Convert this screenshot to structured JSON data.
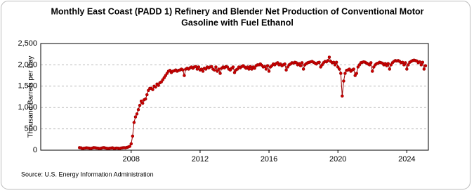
{
  "chart_data": {
    "type": "line",
    "title": [
      "Monthly East Coast (PADD 1) Refinery and Blender Net Production of Conventional Motor",
      "Gasoline with Fuel Ethanol"
    ],
    "y_label": "Thousand Barrels per Day",
    "source": "Source: U.S. Energy Information Administration",
    "x": [
      "2005-01",
      "2005-02",
      "2005-03",
      "2005-04",
      "2005-05",
      "2005-06",
      "2005-07",
      "2005-08",
      "2005-09",
      "2005-10",
      "2005-11",
      "2005-12",
      "2006-01",
      "2006-02",
      "2006-03",
      "2006-04",
      "2006-05",
      "2006-06",
      "2006-07",
      "2006-08",
      "2006-09",
      "2006-10",
      "2006-11",
      "2006-12",
      "2007-01",
      "2007-02",
      "2007-03",
      "2007-04",
      "2007-05",
      "2007-06",
      "2007-07",
      "2007-08",
      "2007-09",
      "2007-10",
      "2007-11",
      "2007-12",
      "2008-01",
      "2008-02",
      "2008-03",
      "2008-04",
      "2008-05",
      "2008-06",
      "2008-07",
      "2008-08",
      "2008-09",
      "2008-10",
      "2008-11",
      "2008-12",
      "2009-01",
      "2009-02",
      "2009-03",
      "2009-04",
      "2009-05",
      "2009-06",
      "2009-07",
      "2009-08",
      "2009-09",
      "2009-10",
      "2009-11",
      "2009-12",
      "2010-01",
      "2010-02",
      "2010-03",
      "2010-04",
      "2010-05",
      "2010-06",
      "2010-07",
      "2010-08",
      "2010-09",
      "2010-10",
      "2010-11",
      "2010-12",
      "2011-01",
      "2011-02",
      "2011-03",
      "2011-04",
      "2011-05",
      "2011-06",
      "2011-07",
      "2011-08",
      "2011-09",
      "2011-10",
      "2011-11",
      "2011-12",
      "2012-01",
      "2012-02",
      "2012-03",
      "2012-04",
      "2012-05",
      "2012-06",
      "2012-07",
      "2012-08",
      "2012-09",
      "2012-10",
      "2012-11",
      "2012-12",
      "2013-01",
      "2013-02",
      "2013-03",
      "2013-04",
      "2013-05",
      "2013-06",
      "2013-07",
      "2013-08",
      "2013-09",
      "2013-10",
      "2013-11",
      "2013-12",
      "2014-01",
      "2014-02",
      "2014-03",
      "2014-04",
      "2014-05",
      "2014-06",
      "2014-07",
      "2014-08",
      "2014-09",
      "2014-10",
      "2014-11",
      "2014-12",
      "2015-01",
      "2015-02",
      "2015-03",
      "2015-04",
      "2015-05",
      "2015-06",
      "2015-07",
      "2015-08",
      "2015-09",
      "2015-10",
      "2015-11",
      "2015-12",
      "2016-01",
      "2016-02",
      "2016-03",
      "2016-04",
      "2016-05",
      "2016-06",
      "2016-07",
      "2016-08",
      "2016-09",
      "2016-10",
      "2016-11",
      "2016-12",
      "2017-01",
      "2017-02",
      "2017-03",
      "2017-04",
      "2017-05",
      "2017-06",
      "2017-07",
      "2017-08",
      "2017-09",
      "2017-10",
      "2017-11",
      "2017-12",
      "2018-01",
      "2018-02",
      "2018-03",
      "2018-04",
      "2018-05",
      "2018-06",
      "2018-07",
      "2018-08",
      "2018-09",
      "2018-10",
      "2018-11",
      "2018-12",
      "2019-01",
      "2019-02",
      "2019-03",
      "2019-04",
      "2019-05",
      "2019-06",
      "2019-07",
      "2019-08",
      "2019-09",
      "2019-10",
      "2019-11",
      "2019-12",
      "2020-01",
      "2020-02",
      "2020-03",
      "2020-04",
      "2020-05",
      "2020-06",
      "2020-07",
      "2020-08",
      "2020-09",
      "2020-10",
      "2020-11",
      "2020-12",
      "2021-01",
      "2021-02",
      "2021-03",
      "2021-04",
      "2021-05",
      "2021-06",
      "2021-07",
      "2021-08",
      "2021-09",
      "2021-10",
      "2021-11",
      "2021-12",
      "2022-01",
      "2022-02",
      "2022-03",
      "2022-04",
      "2022-05",
      "2022-06",
      "2022-07",
      "2022-08",
      "2022-09",
      "2022-10",
      "2022-11",
      "2022-12",
      "2023-01",
      "2023-02",
      "2023-03",
      "2023-04",
      "2023-05",
      "2023-06",
      "2023-07",
      "2023-08",
      "2023-09",
      "2023-10",
      "2023-11",
      "2023-12",
      "2024-01",
      "2024-02",
      "2024-03",
      "2024-04",
      "2024-05",
      "2024-06",
      "2024-07",
      "2024-08",
      "2024-09",
      "2024-10",
      "2024-11",
      "2024-12",
      "2025-01",
      "2025-02"
    ],
    "series": [
      {
        "color": "#cc0000",
        "values": [
          60,
          55,
          40,
          45,
          50,
          55,
          50,
          45,
          40,
          50,
          60,
          55,
          50,
          45,
          40,
          45,
          55,
          60,
          50,
          45,
          40,
          45,
          50,
          55,
          40,
          45,
          50,
          45,
          40,
          50,
          55,
          60,
          55,
          65,
          75,
          90,
          150,
          330,
          650,
          780,
          850,
          950,
          1050,
          1150,
          1100,
          1180,
          1200,
          1300,
          1400,
          1450,
          1450,
          1420,
          1500,
          1480,
          1550,
          1520,
          1580,
          1600,
          1650,
          1700,
          1750,
          1800,
          1850,
          1870,
          1820,
          1850,
          1860,
          1880,
          1850,
          1870,
          1880,
          1900,
          1880,
          1750,
          1900,
          1920,
          1900,
          1930,
          1950,
          1920,
          1950,
          1960,
          1900,
          1950,
          1880,
          1900,
          1850,
          1920,
          1900,
          1950,
          1930,
          1950,
          1960,
          1900,
          1880,
          1950,
          1850,
          1900,
          1800,
          1920,
          1950,
          1930,
          1960,
          1950,
          1900,
          1880,
          1920,
          1950,
          1820,
          1880,
          1900,
          1950,
          1930,
          1960,
          1980,
          1950,
          1920,
          1950,
          1900,
          1960,
          1900,
          1950,
          1920,
          1980,
          2000,
          2000,
          2020,
          1990,
          1950,
          1960,
          1900,
          1980,
          1850,
          1950,
          1980,
          2020,
          2000,
          2030,
          2050,
          2000,
          2020,
          1980,
          2000,
          2020,
          1880,
          1950,
          2000,
          2020,
          2050,
          2040,
          2060,
          2050,
          2000,
          2030,
          1980,
          2050,
          1900,
          2000,
          2030,
          2050,
          2060,
          2070,
          2080,
          2060,
          2040,
          2020,
          2050,
          2060,
          1950,
          2000,
          2050,
          2080,
          2070,
          2100,
          2180,
          2080,
          2050,
          2060,
          2000,
          2060,
          1950,
          1900,
          1800,
          1270,
          1620,
          1800,
          1870,
          1880,
          1900,
          1850,
          1880,
          1900,
          1750,
          1800,
          1950,
          2000,
          2050,
          2060,
          2070,
          2060,
          2040,
          2020,
          2000,
          2050,
          1850,
          1950,
          2000,
          2030,
          2040,
          2060,
          2050,
          2040,
          2000,
          2030,
          1980,
          2030,
          1900,
          2000,
          2050,
          2080,
          2100,
          2090,
          2100,
          2080,
          2050,
          2060,
          2000,
          2050,
          1900,
          2000,
          2060,
          2080,
          2100,
          2110,
          2100,
          2090,
          2050,
          2070,
          2000,
          2060,
          1900,
          1980
        ]
      }
    ],
    "xlim": [
      "2002-10",
      "2025-04"
    ],
    "xticks": [
      2008,
      2012,
      2016,
      2020,
      2024
    ],
    "ylim": [
      0,
      2500
    ],
    "yticks": [
      0,
      500,
      {
        "value": 1000,
        "label": "1,000"
      },
      {
        "value": 1500,
        "label": "1,500"
      },
      {
        "value": 2000,
        "label": "2,000"
      },
      {
        "value": 2500,
        "label": "2,500"
      }
    ],
    "grid": true
  }
}
